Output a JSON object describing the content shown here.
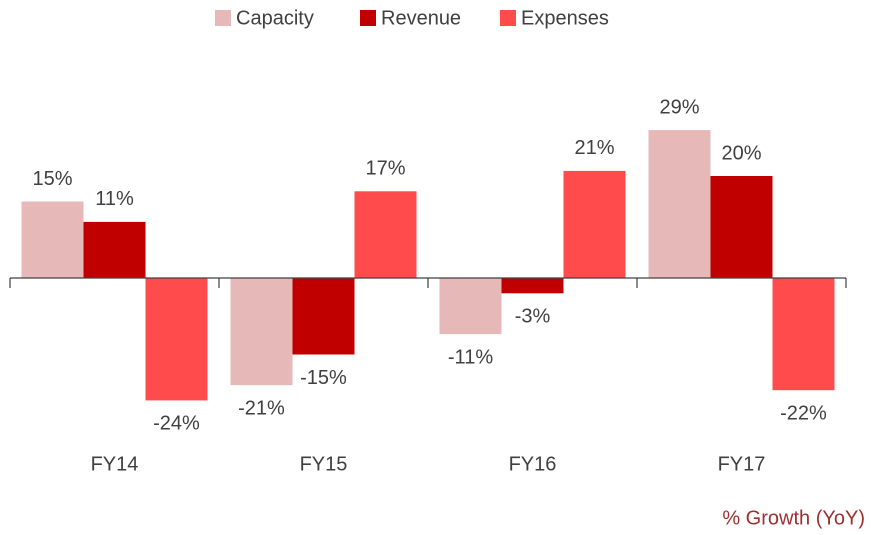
{
  "chart_data": {
    "type": "bar",
    "annotation": "% Growth (YoY)",
    "categories": [
      "FY14",
      "FY15",
      "FY16",
      "FY17"
    ],
    "series": [
      {
        "name": "Capacity",
        "color": "#e6b8b7",
        "values": [
          15,
          -21,
          -11,
          29
        ],
        "value_labels": [
          "15%",
          "-21%",
          "-11%",
          "29%"
        ]
      },
      {
        "name": "Revenue",
        "color": "#c00000",
        "values": [
          11,
          -15,
          -3,
          20
        ],
        "value_labels": [
          "11%",
          "-15%",
          "-3%",
          "20%"
        ]
      },
      {
        "name": "Expenses",
        "color": "#ff4b4b",
        "values": [
          -24,
          17,
          21,
          -22
        ],
        "value_labels": [
          "-24%",
          "17%",
          "21%",
          "-22%"
        ]
      }
    ],
    "ylim": [
      -30,
      40
    ],
    "legend": "top"
  }
}
